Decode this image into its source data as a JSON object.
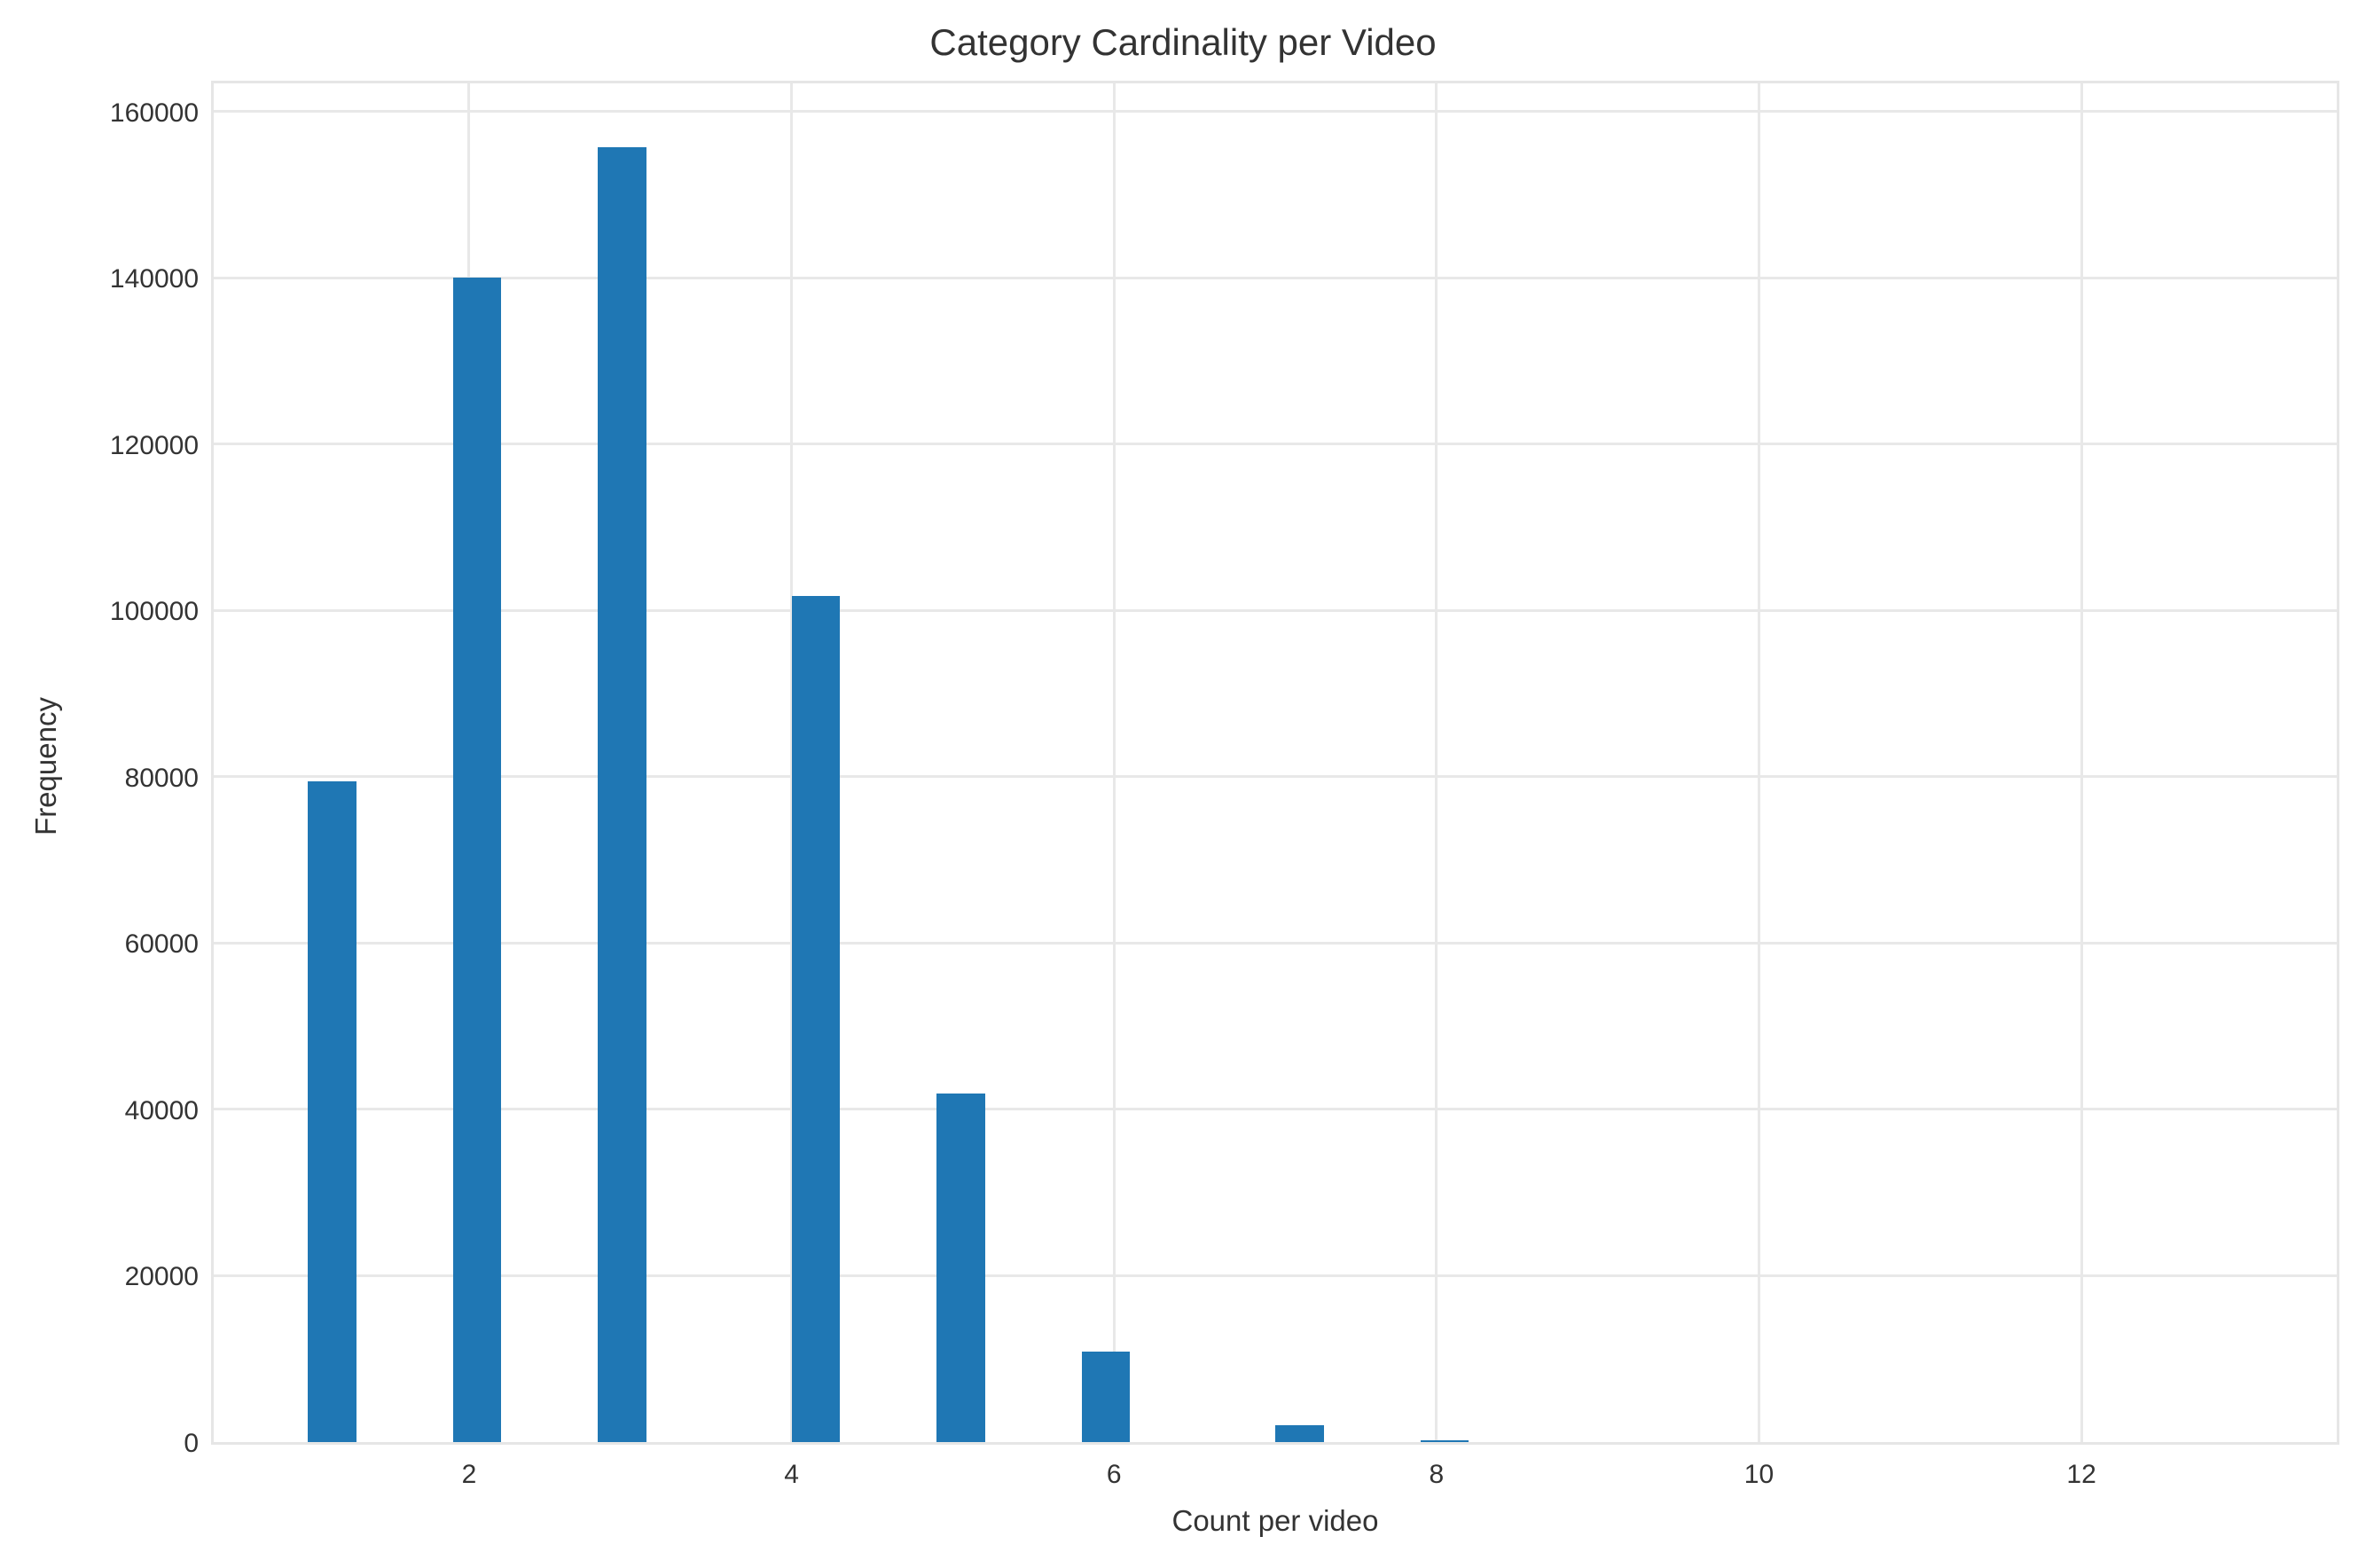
{
  "chart_data": {
    "type": "bar",
    "title": "Category Cardinality per Video",
    "xlabel": "Count per video",
    "ylabel": "Frequency",
    "histogram": true,
    "bins": 40,
    "bin_range": [
      1,
      13
    ],
    "bin_width": 0.3,
    "categories": [
      "1",
      "2",
      "3",
      "4",
      "5",
      "6",
      "7",
      "8"
    ],
    "bin_starts": [
      1.0,
      1.9,
      2.8,
      4.0,
      4.9,
      5.8,
      7.0,
      7.9
    ],
    "values": [
      79800,
      140300,
      156000,
      102000,
      42200,
      11200,
      2400,
      450
    ],
    "xlim": [
      0.4,
      13.6
    ],
    "ylim": [
      0,
      164000
    ],
    "xticks": [
      "2",
      "4",
      "6",
      "8",
      "10",
      "12"
    ],
    "xtick_values": [
      2,
      4,
      6,
      8,
      10,
      12
    ],
    "yticks": [
      "0",
      "20000",
      "40000",
      "60000",
      "80000",
      "100000",
      "120000",
      "140000",
      "160000"
    ],
    "ytick_values": [
      0,
      20000,
      40000,
      60000,
      80000,
      100000,
      120000,
      140000,
      160000
    ],
    "grid": true,
    "legend": null,
    "bar_color": "#1f77b4"
  }
}
